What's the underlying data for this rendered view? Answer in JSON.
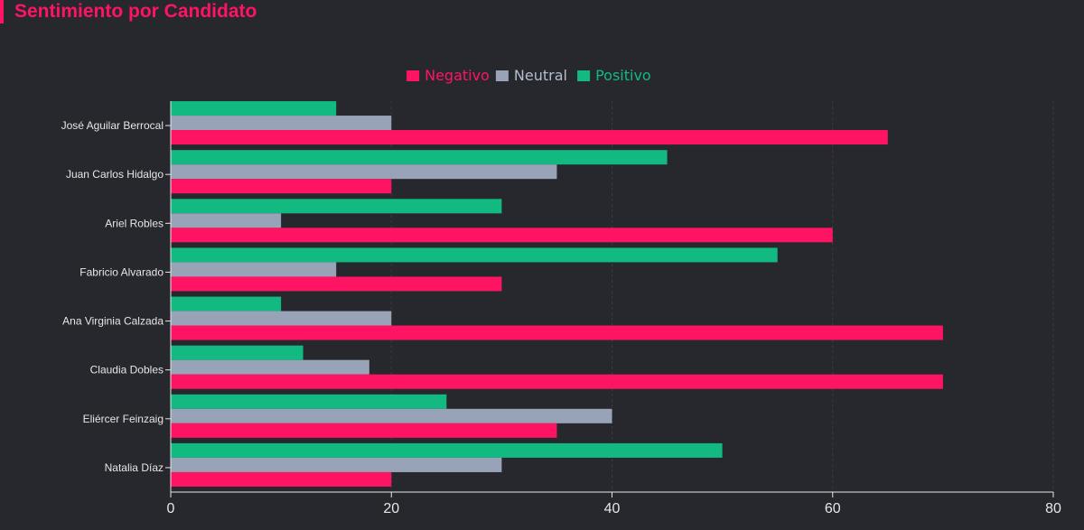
{
  "header": {
    "title": "Sentimiento por Candidato"
  },
  "colors": {
    "background": "#27282d",
    "axis": "#e6e6e6",
    "grid": "#3a3b41"
  },
  "chart_data": {
    "type": "bar",
    "orientation": "horizontal",
    "title": "Sentimiento por Candidato",
    "xlabel": "",
    "ylabel": "",
    "xlim": [
      0,
      80
    ],
    "xticks": [
      0,
      20,
      40,
      60,
      80
    ],
    "grid": "vertical-dashed",
    "legend_position": "top-center",
    "categories": [
      "José Aguilar Berrocal",
      "Juan Carlos Hidalgo",
      "Ariel Robles",
      "Fabricio Alvarado",
      "Ana Virginia Calzada",
      "Claudia Dobles",
      "Eliércer Feinzaig",
      "Natalia Díaz"
    ],
    "series": [
      {
        "name": "Negativo",
        "color": "#ff1464",
        "values": [
          65,
          20,
          60,
          30,
          70,
          70,
          35,
          20
        ]
      },
      {
        "name": "Neutral",
        "color": "#99a3b8",
        "values": [
          20,
          35,
          10,
          15,
          20,
          18,
          40,
          30
        ]
      },
      {
        "name": "Positivo",
        "color": "#12b981",
        "values": [
          15,
          45,
          30,
          55,
          10,
          12,
          25,
          50
        ]
      }
    ]
  }
}
